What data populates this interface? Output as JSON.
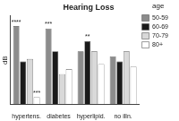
{
  "chart_data": {
    "type": "bar",
    "title": "Hearing Loss",
    "y_label": "dB",
    "categories": [
      "hypertens.",
      "diabetes",
      "hyperlipid.",
      "no illn."
    ],
    "series": [
      {
        "name": "50-59",
        "color": "#8c8c8c",
        "values": [
          31,
          30,
          21,
          19
        ]
      },
      {
        "name": "60-69",
        "color": "#1a1a1a",
        "values": [
          17,
          21,
          25,
          17
        ]
      },
      {
        "name": "70-79",
        "color": "#d9d9d9",
        "values": [
          18,
          12,
          21,
          21
        ]
      },
      {
        "name": "80+",
        "color": "#ffffff",
        "values": [
          3,
          14,
          16,
          15
        ]
      }
    ],
    "legend_title": "age",
    "legend": "right",
    "ylim": [
      0,
      35
    ],
    "tick_labels": "x",
    "grid": false,
    "annotations": [
      {
        "text": "****",
        "category": "hypertens.",
        "series": "50-59"
      },
      {
        "text": "***",
        "category": "hypertens.",
        "series": "80+"
      },
      {
        "text": "***",
        "category": "diabetes",
        "series": "50-59"
      },
      {
        "text": "**",
        "category": "hyperlipid.",
        "series": "60-69"
      }
    ]
  }
}
